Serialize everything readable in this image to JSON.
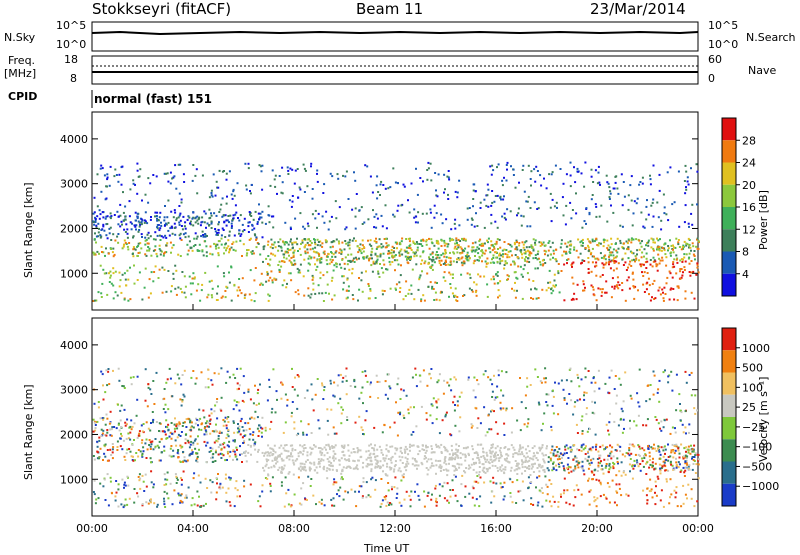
{
  "header": {
    "station": "Stokkseyri (fitACF)",
    "beam": "Beam 11",
    "date": "23/Mar/2014"
  },
  "noise_panel": {
    "left_label": "N.Sky",
    "left_ticks": [
      "10^5",
      "10^0"
    ],
    "right_ticks": [
      "10^5",
      "10^0"
    ],
    "right_label": "N.Search"
  },
  "freq_panel": {
    "left_label_1": "Freq.",
    "left_label_2": "[MHz]",
    "left_ticks": [
      "18",
      "8"
    ],
    "right_ticks": [
      "60",
      "0"
    ],
    "right_label": "Nave"
  },
  "cpid": {
    "label": "CPID",
    "mode": "normal (fast) 151"
  },
  "chart_data": [
    {
      "type": "heatmap",
      "name": "power",
      "ylabel": "Slant Range [km]",
      "yticks": [
        "4000",
        "3000",
        "2000",
        "1000"
      ],
      "ylim": [
        180,
        4600
      ],
      "colorbar_label": "Power [dB]",
      "colorbar_ticks": [
        "28",
        "24",
        "20",
        "16",
        "12",
        "8",
        "4"
      ],
      "colors": [
        "#1010e0",
        "#1a5ab4",
        "#3d7f5a",
        "#3fb05a",
        "#8cc83c",
        "#e0c020",
        "#f07a10",
        "#e01010"
      ]
    },
    {
      "type": "heatmap",
      "name": "velocity",
      "ylabel": "Slant Range [km]",
      "yticks": [
        "4000",
        "3000",
        "2000",
        "1000"
      ],
      "ylim": [
        180,
        4600
      ],
      "colorbar_label": "Velocity [m s⁻¹]",
      "colorbar_ticks": [
        "1000",
        "500",
        "100",
        "25",
        "−25",
        "−100",
        "−500",
        "−1000"
      ],
      "colors": [
        "#1a3cc8",
        "#2a6e8c",
        "#3c8c50",
        "#7ec83a",
        "#c8c8c0",
        "#f0c060",
        "#f08010",
        "#e02010"
      ]
    }
  ],
  "time_axis": {
    "xlabel": "Time UT",
    "ticks": [
      "00:00",
      "04:00",
      "08:00",
      "12:00",
      "16:00",
      "20:00",
      "00:00"
    ]
  }
}
